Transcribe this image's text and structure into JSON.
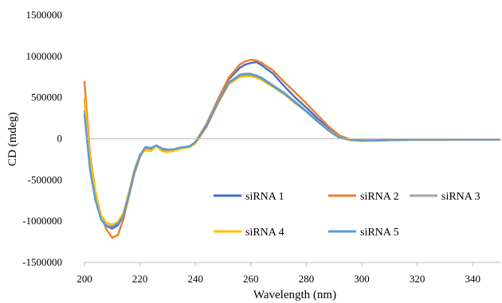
{
  "chart_data": {
    "type": "line",
    "xlabel": "Wavelength (nm)",
    "ylabel": "CD (mdeg)",
    "xlim": [
      200,
      350
    ],
    "ylim": [
      -1500000,
      1500000
    ],
    "xticks": [
      200,
      220,
      240,
      260,
      280,
      300,
      320,
      340
    ],
    "yticks": [
      -1500000,
      -1000000,
      -500000,
      0,
      500000,
      1000000,
      1500000
    ],
    "ytick_labels": [
      "-1500000",
      "-1000000",
      "-500000",
      "0",
      "500000",
      "1000000",
      "1500000"
    ],
    "grid": false,
    "legend": "inside, lower right, 3 columns",
    "x": [
      200,
      202,
      204,
      206,
      208,
      210,
      212,
      214,
      216,
      218,
      220,
      222,
      224,
      226,
      228,
      230,
      232,
      234,
      236,
      238,
      240,
      244,
      248,
      252,
      256,
      258,
      260,
      262,
      264,
      268,
      272,
      276,
      280,
      284,
      288,
      292,
      296,
      300,
      305,
      310,
      320,
      330,
      340,
      350
    ],
    "series": [
      {
        "name": "siRNA 1",
        "color": "#4472C4",
        "values": [
          480000,
          -300000,
          -700000,
          -960000,
          -1060000,
          -1090000,
          -1050000,
          -940000,
          -700000,
          -420000,
          -220000,
          -110000,
          -120000,
          -90000,
          -130000,
          -140000,
          -130000,
          -120000,
          -110000,
          -100000,
          -40000,
          170000,
          460000,
          720000,
          860000,
          900000,
          920000,
          930000,
          890000,
          790000,
          640000,
          500000,
          380000,
          250000,
          130000,
          30000,
          -10000,
          -20000,
          -20000,
          -15000,
          -10000,
          -10000,
          -10000,
          -10000
        ]
      },
      {
        "name": "siRNA 2",
        "color": "#ED7D31",
        "values": [
          700000,
          -200000,
          -650000,
          -950000,
          -1100000,
          -1200000,
          -1170000,
          -980000,
          -700000,
          -420000,
          -220000,
          -110000,
          -110000,
          -90000,
          -120000,
          -140000,
          -130000,
          -120000,
          -110000,
          -100000,
          -40000,
          180000,
          470000,
          740000,
          900000,
          940000,
          960000,
          950000,
          920000,
          830000,
          690000,
          560000,
          430000,
          290000,
          150000,
          40000,
          -10000,
          -20000,
          -20000,
          -15000,
          -10000,
          -10000,
          -10000,
          -10000
        ]
      },
      {
        "name": "siRNA 3",
        "color": "#A5A5A5",
        "values": [
          350000,
          -350000,
          -720000,
          -960000,
          -1050000,
          -1060000,
          -1020000,
          -930000,
          -680000,
          -400000,
          -200000,
          -100000,
          -110000,
          -80000,
          -120000,
          -130000,
          -130000,
          -110000,
          -100000,
          -90000,
          -40000,
          160000,
          440000,
          680000,
          780000,
          790000,
          790000,
          770000,
          740000,
          650000,
          560000,
          450000,
          340000,
          220000,
          110000,
          20000,
          -10000,
          -20000,
          -20000,
          -15000,
          -10000,
          -10000,
          -10000,
          -10000
        ]
      },
      {
        "name": "siRNA 4",
        "color": "#FFC000",
        "values": [
          500000,
          -250000,
          -650000,
          -930000,
          -1020000,
          -1040000,
          -1010000,
          -900000,
          -650000,
          -380000,
          -190000,
          -140000,
          -150000,
          -90000,
          -150000,
          -160000,
          -150000,
          -130000,
          -110000,
          -100000,
          -60000,
          140000,
          420000,
          660000,
          750000,
          760000,
          760000,
          740000,
          710000,
          630000,
          540000,
          430000,
          330000,
          210000,
          100000,
          10000,
          -20000,
          -30000,
          -25000,
          -20000,
          -15000,
          -15000,
          -10000,
          -10000
        ]
      },
      {
        "name": "siRNA 5",
        "color": "#5B9BD5",
        "values": [
          300000,
          -380000,
          -750000,
          -980000,
          -1060000,
          -1070000,
          -1030000,
          -940000,
          -680000,
          -400000,
          -200000,
          -100000,
          -110000,
          -80000,
          -120000,
          -130000,
          -130000,
          -110000,
          -100000,
          -90000,
          -40000,
          150000,
          430000,
          680000,
          770000,
          780000,
          780000,
          760000,
          730000,
          640000,
          550000,
          440000,
          330000,
          210000,
          100000,
          10000,
          -10000,
          -20000,
          -20000,
          -15000,
          -10000,
          -10000,
          -10000,
          -10000
        ]
      }
    ]
  }
}
